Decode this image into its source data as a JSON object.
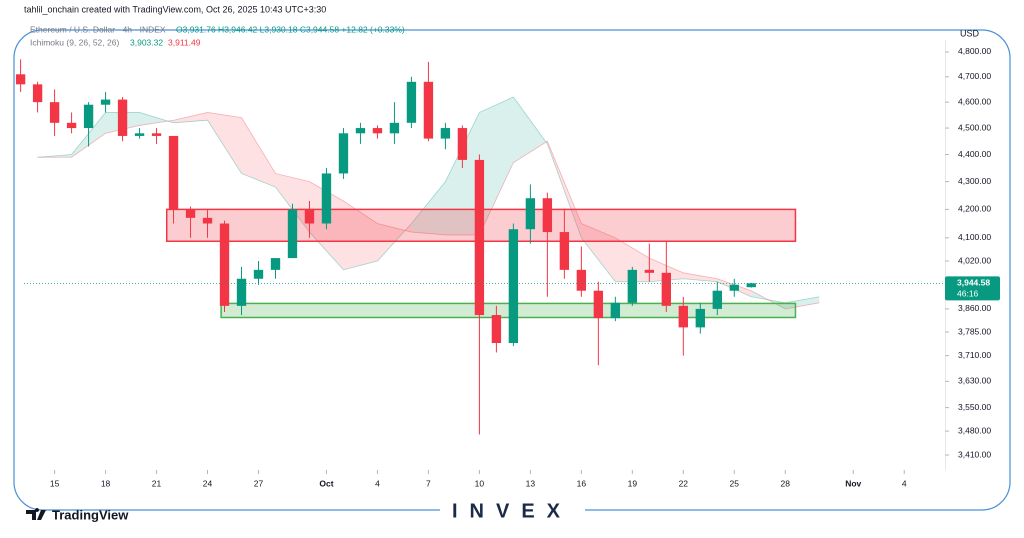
{
  "chart_data": {
    "type": "candlestick",
    "attribution": "tahlil_onchain created with TradingView.com, Oct 26, 2025 10:43 UTC+3:30",
    "title": "Ethereum / U.S. Dollar · 4h · INDEX",
    "ohlc_text": "O3,931.76 H3,946.42 L3,930.18 C3,944.58 +12.82 (+0.33%)",
    "indicator": "Ichimoku (9, 26, 52, 26)",
    "indicator_values": [
      "3,903.32",
      "3,911.49"
    ],
    "currency": "USD",
    "last_price": {
      "value": 3944.58,
      "label": "3,944.58"
    },
    "countdown": "46:16",
    "logo": "TradingView",
    "watermark": "INVEX",
    "log_scale": true,
    "up_color": "#089981",
    "down_color": "#f23645",
    "candles": {
      "x": [
        13,
        14,
        15,
        16,
        17,
        18,
        19,
        20,
        21,
        22,
        23,
        24,
        25,
        26,
        27,
        28,
        29,
        30,
        31,
        32,
        33,
        34,
        35,
        36,
        37,
        38,
        39,
        40,
        41,
        42,
        43,
        44,
        45,
        46,
        47,
        48,
        49,
        50,
        51,
        52,
        53,
        54,
        55,
        56
      ],
      "open": [
        4710,
        4670,
        4600,
        4520,
        4500,
        4590,
        4610,
        4470,
        4480,
        4470,
        4200,
        4170,
        4150,
        3870,
        3960,
        3990,
        4030,
        4200,
        4150,
        4330,
        4480,
        4500,
        4480,
        4520,
        4680,
        4460,
        4500,
        4380,
        3840,
        3750,
        4130,
        4240,
        4120,
        3990,
        3920,
        3830,
        3880,
        3990,
        3980,
        3870,
        3800,
        3860,
        3920,
        3931.76
      ],
      "high": [
        4770,
        4680,
        4650,
        4560,
        4600,
        4640,
        4620,
        4500,
        4500,
        4470,
        4210,
        4200,
        4160,
        4000,
        4020,
        4030,
        4220,
        4230,
        4350,
        4500,
        4520,
        4510,
        4600,
        4700,
        4760,
        4520,
        4510,
        4400,
        3870,
        4150,
        4290,
        4260,
        4200,
        4070,
        3950,
        3900,
        4000,
        4080,
        4090,
        3900,
        3880,
        3950,
        3960,
        3946.42
      ],
      "low": [
        4640,
        4560,
        4470,
        4480,
        4430,
        4560,
        4450,
        4460,
        4440,
        4150,
        4100,
        4100,
        3850,
        3840,
        3940,
        3960,
        4030,
        4100,
        4130,
        4310,
        4440,
        4460,
        4440,
        4500,
        4450,
        4420,
        4350,
        3470,
        3720,
        3740,
        4080,
        3900,
        3960,
        3900,
        3680,
        3820,
        3870,
        3950,
        3850,
        3710,
        3780,
        3840,
        3900,
        3930.18
      ],
      "close": [
        4670,
        4600,
        4520,
        4500,
        4590,
        4610,
        4470,
        4480,
        4470,
        4200,
        4170,
        4150,
        3870,
        3960,
        3990,
        4030,
        4200,
        4150,
        4330,
        4480,
        4500,
        4480,
        4520,
        4680,
        4460,
        4500,
        4380,
        3840,
        3750,
        4130,
        4240,
        4120,
        3990,
        3920,
        3830,
        3880,
        3990,
        3980,
        3870,
        3800,
        3860,
        3920,
        3940,
        3944.58
      ]
    },
    "cloud": {
      "x": [
        14,
        16,
        18,
        20,
        22,
        24,
        26,
        28,
        30,
        32,
        34,
        36,
        38,
        40,
        42,
        44,
        46,
        48,
        50,
        52,
        54,
        56,
        58,
        60
      ],
      "span_a": [
        4390,
        4400,
        4560,
        4560,
        4520,
        4530,
        4330,
        4280,
        4120,
        3990,
        4020,
        4150,
        4300,
        4560,
        4620,
        4440,
        4100,
        3950,
        3950,
        3960,
        3950,
        3900,
        3880,
        3900
      ],
      "span_b": [
        4390,
        4390,
        4480,
        4510,
        4530,
        4560,
        4540,
        4330,
        4300,
        4230,
        4150,
        4120,
        4110,
        4110,
        4370,
        4450,
        4150,
        4100,
        4030,
        3980,
        3960,
        3920,
        3860,
        3880
      ],
      "up_color": "#089981",
      "down_color": "#f23645"
    },
    "zones": [
      {
        "x": [
          21.6,
          58.6
        ],
        "y": [
          4088,
          4200
        ],
        "color": "#f23645"
      },
      {
        "x": [
          24.8,
          58.6
        ],
        "y": [
          3832,
          3878
        ],
        "color": "#4caf50"
      }
    ],
    "xlim": [
      13.2,
      67.4
    ],
    "xticks": [
      15,
      18,
      21,
      24,
      27,
      {
        "value": 31,
        "label": "Oct"
      },
      {
        "value": 34,
        "label": "4"
      },
      {
        "value": 37,
        "label": "7"
      },
      {
        "value": 40,
        "label": "10"
      },
      {
        "value": 43,
        "label": "13"
      },
      {
        "value": 46,
        "label": "16"
      },
      {
        "value": 49,
        "label": "19"
      },
      {
        "value": 52,
        "label": "22"
      },
      {
        "value": 55,
        "label": "25"
      },
      {
        "value": 58,
        "label": "28"
      },
      {
        "value": 62,
        "label": "Nov"
      },
      {
        "value": 65,
        "label": "4"
      }
    ],
    "ylim": [
      3367,
      4849
    ],
    "yticks": [
      {
        "value": 4800,
        "label": "4,800.00"
      },
      {
        "value": 4700,
        "label": "4,700.00"
      },
      {
        "value": 4600,
        "label": "4,600.00"
      },
      {
        "value": 4500,
        "label": "4,500.00"
      },
      {
        "value": 4400,
        "label": "4,400.00"
      },
      {
        "value": 4300,
        "label": "4,300.00"
      },
      {
        "value": 4200,
        "label": "4,200.00"
      },
      {
        "value": 4100,
        "label": "4,100.00"
      },
      {
        "value": 4020,
        "label": "4,020.00"
      },
      {
        "value": 3860,
        "label": "3,860.00"
      },
      {
        "value": 3785,
        "label": "3,785.00"
      },
      {
        "value": 3710,
        "label": "3,710.00"
      },
      {
        "value": 3630,
        "label": "3,630.00"
      },
      {
        "value": 3550,
        "label": "3,550.00"
      },
      {
        "value": 3480,
        "label": "3,480.00"
      },
      {
        "value": 3410,
        "label": "3,410.00"
      }
    ]
  }
}
